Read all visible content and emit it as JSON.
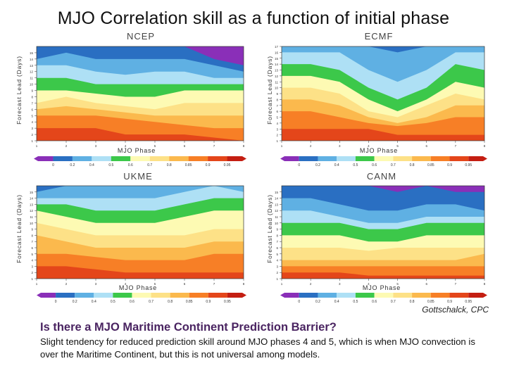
{
  "slide": {
    "title": "MJO Correlation skill as a function of initial phase",
    "credit": "Gottschalck, CPC",
    "question": "Is there a MJO Maritime Continent Prediction Barrier?",
    "summary": "Slight tendency for reduced prediction skill around MJO phases 4 and 5, which is when MJO convection is over the Maritime Continent, but this is not universal among models."
  },
  "chart_data": [
    {
      "type": "contour",
      "title": "NCEP",
      "xlabel": "MJO Phase",
      "ylabel": "Forecast Lead (Days)",
      "x": [
        1,
        2,
        3,
        4,
        5,
        6,
        7,
        8
      ],
      "y_ticks": [
        1,
        2,
        3,
        4,
        5,
        6,
        7,
        8,
        9,
        10,
        11,
        12,
        13,
        14,
        15
      ],
      "levels": [
        0,
        0.2,
        0.4,
        0.5,
        0.6,
        0.7,
        0.8,
        0.85,
        0.9,
        0.95
      ],
      "colorbar_labels": [
        "0",
        "0.2",
        "0.4",
        "0.5",
        "0.6",
        "0.7",
        "0.8",
        "0.85",
        "0.9",
        "0.95"
      ],
      "level_lead_days": {
        "0.95": [
          3,
          3,
          3,
          2,
          2,
          2,
          1.5,
          1
        ],
        "0.9": [
          5,
          5,
          5,
          4.5,
          4,
          3.5,
          3,
          3
        ],
        "0.85": [
          6,
          6.5,
          6,
          5.5,
          5,
          5,
          5,
          5
        ],
        "0.8": [
          7,
          8,
          7,
          6.5,
          6,
          7,
          7,
          7
        ],
        "0.7": [
          9,
          9,
          8.5,
          8,
          8,
          9,
          9,
          9
        ],
        "0.6": [
          11,
          11,
          10,
          10,
          10,
          10,
          10,
          10
        ],
        "0.5": [
          13,
          13,
          12,
          11.5,
          12,
          12,
          11,
          11
        ],
        "0.4": [
          14,
          15,
          14,
          14,
          14,
          14,
          13,
          12
        ],
        "0.2": [
          16,
          16,
          16,
          16,
          16,
          16,
          14,
          13
        ]
      },
      "ylim": [
        1,
        16
      ]
    },
    {
      "type": "contour",
      "title": "ECMF",
      "xlabel": "MJO Phase",
      "ylabel": "Forecast Lead (Days)",
      "x": [
        1,
        2,
        3,
        4,
        5,
        6,
        7,
        8
      ],
      "y_ticks": [
        1,
        2,
        3,
        4,
        5,
        6,
        7,
        8,
        9,
        10,
        11,
        12,
        13,
        14,
        15,
        16,
        17
      ],
      "levels": [
        0,
        0.2,
        0.4,
        0.5,
        0.6,
        0.7,
        0.8,
        0.85,
        0.9,
        0.95
      ],
      "colorbar_labels": [
        "0",
        "0.2",
        "0.4",
        "0.5",
        "0.6",
        "0.7",
        "0.8",
        "0.85",
        "0.9",
        "0.95"
      ],
      "level_lead_days": {
        "0.95": [
          3,
          3,
          3,
          3,
          2,
          2,
          2,
          2
        ],
        "0.9": [
          6,
          6,
          5,
          4,
          3.5,
          4,
          5,
          5
        ],
        "0.85": [
          8,
          8,
          7,
          5,
          4,
          5,
          7,
          7
        ],
        "0.8": [
          10,
          10,
          9,
          6,
          5,
          7,
          9,
          8
        ],
        "0.7": [
          12,
          12,
          11,
          8,
          6,
          8,
          11,
          10
        ],
        "0.6": [
          14,
          14,
          13,
          10,
          8,
          10,
          14,
          13
        ],
        "0.5": [
          16,
          16,
          16,
          13,
          11,
          13,
          16,
          16
        ],
        "0.4": [
          18,
          18,
          18,
          17,
          16,
          17,
          18,
          17
        ]
      },
      "ylim": [
        1,
        17
      ]
    },
    {
      "type": "contour",
      "title": "UKME",
      "xlabel": "MJO Phase",
      "ylabel": "Forecast Lead (Days)",
      "x": [
        1,
        2,
        3,
        4,
        5,
        6,
        7,
        8
      ],
      "y_ticks": [
        1,
        2,
        3,
        4,
        5,
        6,
        7,
        8,
        9,
        10,
        11,
        12,
        13,
        14,
        15
      ],
      "levels": [
        0,
        0.2,
        0.4,
        0.5,
        0.6,
        0.7,
        0.8,
        0.85,
        0.9,
        0.95
      ],
      "colorbar_labels": [
        "0",
        "0.2",
        "0.4",
        "0.5",
        "0.6",
        "0.7",
        "0.8",
        "0.85",
        "0.9",
        "0.95"
      ],
      "level_lead_days": {
        "0.95": [
          3,
          3,
          2.5,
          2,
          2,
          2,
          2,
          2
        ],
        "0.9": [
          5,
          5,
          4.5,
          4,
          4,
          4,
          5,
          5
        ],
        "0.85": [
          8,
          7,
          6,
          6,
          6,
          6,
          7,
          7
        ],
        "0.8": [
          10,
          9,
          8,
          8,
          8,
          8,
          9,
          9
        ],
        "0.7": [
          12,
          11,
          10,
          10,
          10,
          11,
          12,
          12
        ],
        "0.6": [
          13,
          13,
          12,
          12,
          12,
          13,
          14,
          14
        ],
        "0.5": [
          14,
          14,
          14,
          14,
          14,
          15,
          16,
          15
        ],
        "0.4": [
          15,
          16,
          16,
          16,
          16,
          16,
          16,
          16
        ]
      },
      "ylim": [
        1,
        16
      ]
    },
    {
      "type": "contour",
      "title": "CANM",
      "xlabel": "MJO Phase",
      "ylabel": "Forecast Lead (Days)",
      "x": [
        1,
        2,
        3,
        4,
        5,
        6,
        7,
        8
      ],
      "y_ticks": [
        1,
        2,
        3,
        4,
        5,
        6,
        7,
        8,
        9,
        10,
        11,
        12,
        13,
        14,
        15
      ],
      "levels": [
        0,
        0.2,
        0.4,
        0.5,
        0.6,
        0.7,
        0.8,
        0.85,
        0.9,
        0.95
      ],
      "colorbar_labels": [
        "0",
        "0.2",
        "0.4",
        "0.5",
        "0.6",
        "0.7",
        "0.8",
        "0.85",
        "0.9",
        "0.95"
      ],
      "level_lead_days": {
        "0.95": [
          2,
          2,
          2,
          1.5,
          1.5,
          1.5,
          1.5,
          1.5
        ],
        "0.9": [
          3,
          3,
          3,
          3,
          3,
          3,
          3,
          3
        ],
        "0.85": [
          4,
          4,
          4,
          4,
          4,
          4,
          4,
          5
        ],
        "0.8": [
          6,
          6,
          6,
          5.5,
          6,
          6,
          6,
          6
        ],
        "0.7": [
          8,
          8,
          8,
          7,
          7,
          8,
          8,
          8
        ],
        "0.6": [
          10,
          10,
          10,
          9,
          9,
          10,
          10,
          10
        ],
        "0.5": [
          12,
          12,
          11,
          10,
          10,
          11,
          11,
          11
        ],
        "0.4": [
          14,
          14,
          13,
          12,
          12,
          13,
          13,
          12
        ],
        "0.2": [
          16,
          16,
          16,
          16,
          15,
          16,
          15,
          15
        ]
      },
      "ylim": [
        1,
        16
      ]
    }
  ],
  "colors": {
    "0": "#8a2fb8",
    "0.2": "#2a6fc2",
    "0.4": "#5fb0e3",
    "0.5": "#aee0f5",
    "0.6": "#3cc84a",
    "0.7": "#fdfab3",
    "0.8": "#fde187",
    "0.85": "#fbb94d",
    "0.9": "#f77f26",
    "0.95": "#e4461a",
    "top": "#c41e12",
    "text": "#4a2461"
  }
}
